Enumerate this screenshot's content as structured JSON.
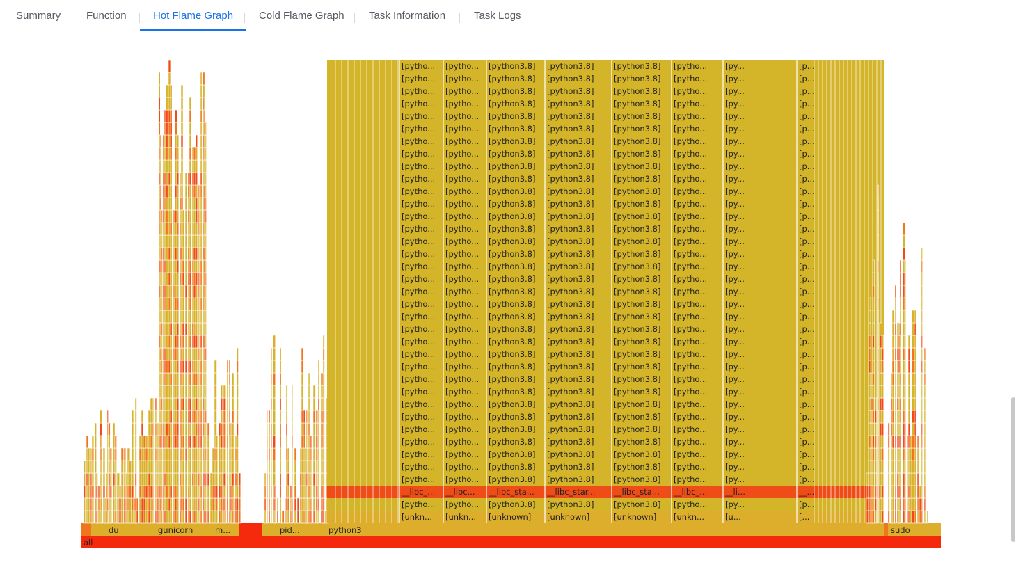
{
  "tabs": [
    {
      "label": "Summary",
      "active": false
    },
    {
      "label": "Function",
      "active": false
    },
    {
      "label": "Hot Flame Graph",
      "active": true
    },
    {
      "label": "Cold Flame Graph",
      "active": false
    },
    {
      "label": "Task Information",
      "active": false
    },
    {
      "label": "Task Logs",
      "active": false
    }
  ],
  "flame": {
    "root_label": "all",
    "process_labels": [
      "du",
      "gunicorn",
      "m...",
      "pid...",
      "python3",
      "sudo"
    ],
    "column_labels": {
      "unknown_row": [
        "[unkn...",
        "[unkn...",
        "[unknown]",
        "[unknown]",
        "[unknown]",
        "[unkn...",
        "[u...",
        "[..."
      ],
      "python_row": [
        "[pytho...",
        "[pytho...",
        "[python3.8]",
        "[python3.8]",
        "[python3.8]",
        "[pytho...",
        "[py...",
        "[p..."
      ],
      "libc_row": [
        "__libc_...",
        "__libc...",
        "__libc_sta...",
        "__libc_star...",
        "__libc_sta...",
        "__libc_...",
        "__li...",
        "__..."
      ]
    },
    "colors": {
      "root": "#f52a0c",
      "orange": "#f0751c",
      "red_orange": "#f04c18",
      "mustard": "#dcae2c",
      "gold": "#d4b428",
      "accent_tab": "#1a73e8"
    }
  }
}
